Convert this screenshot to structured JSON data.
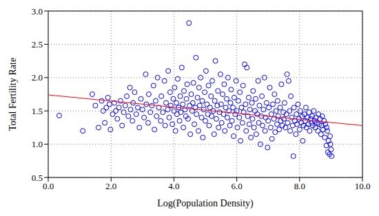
{
  "chart_data": {
    "type": "scatter",
    "x_label": "Log(Population Density)",
    "y_label": "Total Fertility Rate",
    "xlim": [
      0,
      10
    ],
    "xticks": [
      {
        "value": 0,
        "label": "0.0"
      },
      {
        "value": 2,
        "label": "2.0"
      },
      {
        "value": 4,
        "label": "4.0"
      },
      {
        "value": 6,
        "label": "6.0"
      },
      {
        "value": 8,
        "label": "8.0"
      },
      {
        "value": 10,
        "label": "10.0"
      }
    ],
    "ylim": [
      0.5,
      3
    ],
    "yticks": [
      0.5,
      {
        "value": 1,
        "label": "1.0"
      },
      1.5,
      {
        "value": 2,
        "label": "2.0"
      },
      2.5,
      {
        "value": 3,
        "label": "3.0"
      }
    ],
    "grid": true,
    "series": [
      {
        "type": "scatter",
        "color": "#0000ff",
        "marker": "circle",
        "x": [
          0.35,
          1.1,
          1.4,
          1.5,
          1.6,
          1.7,
          1.75,
          1.8,
          1.85,
          1.9,
          1.95,
          1.98,
          2.05,
          2.1,
          2.15,
          2.2,
          2.25,
          2.3,
          2.35,
          2.4,
          2.45,
          2.5,
          2.55,
          2.6,
          2.62,
          2.68,
          2.7,
          2.75,
          2.8,
          2.85,
          2.9,
          2.95,
          3.0,
          3.05,
          3.1,
          3.12,
          3.18,
          3.2,
          3.25,
          3.3,
          3.35,
          3.38,
          3.42,
          3.45,
          3.48,
          3.52,
          3.58,
          3.6,
          3.65,
          3.7,
          3.72,
          3.75,
          3.8,
          3.82,
          3.85,
          3.88,
          3.9,
          3.95,
          3.98,
          4.0,
          4.02,
          4.05,
          4.08,
          4.1,
          4.12,
          4.15,
          4.18,
          4.2,
          4.22,
          4.25,
          4.28,
          4.3,
          4.32,
          4.35,
          4.38,
          4.4,
          4.42,
          4.45,
          4.48,
          4.5,
          4.52,
          4.55,
          4.58,
          4.6,
          4.62,
          4.65,
          4.68,
          4.7,
          4.72,
          4.75,
          4.78,
          4.8,
          4.82,
          4.85,
          4.88,
          4.9,
          4.92,
          4.95,
          4.98,
          5.0,
          5.02,
          5.05,
          5.08,
          5.1,
          5.12,
          5.15,
          5.18,
          5.2,
          5.22,
          5.25,
          5.28,
          5.3,
          5.32,
          5.35,
          5.38,
          5.4,
          5.42,
          5.45,
          5.48,
          5.5,
          5.52,
          5.55,
          5.58,
          5.6,
          5.62,
          5.65,
          5.68,
          5.7,
          5.72,
          5.75,
          5.78,
          5.8,
          5.82,
          5.85,
          5.88,
          5.9,
          5.92,
          5.95,
          5.98,
          6.0,
          6.02,
          6.05,
          6.08,
          6.1,
          6.12,
          6.15,
          6.18,
          6.2,
          6.22,
          6.25,
          6.28,
          6.3,
          6.32,
          6.35,
          6.38,
          6.4,
          6.42,
          6.45,
          6.48,
          6.5,
          6.52,
          6.55,
          6.58,
          6.6,
          6.62,
          6.65,
          6.68,
          6.7,
          6.72,
          6.75,
          6.78,
          6.8,
          6.82,
          6.85,
          6.88,
          6.9,
          6.92,
          6.95,
          6.98,
          7.0,
          7.02,
          7.05,
          7.08,
          7.1,
          7.12,
          7.15,
          7.18,
          7.2,
          7.22,
          7.25,
          7.28,
          7.3,
          7.32,
          7.35,
          7.38,
          7.4,
          7.42,
          7.45,
          7.48,
          7.5,
          7.52,
          7.55,
          7.58,
          7.6,
          7.62,
          7.65,
          7.68,
          7.7,
          7.72,
          7.75,
          7.78,
          7.8,
          7.82,
          7.85,
          7.88,
          7.9,
          7.92,
          7.95,
          7.98,
          8.0,
          8.02,
          8.05,
          8.08,
          8.1,
          8.12,
          8.15,
          8.18,
          8.2,
          8.22,
          8.25,
          8.28,
          8.3,
          8.32,
          8.35,
          8.38,
          8.4,
          8.42,
          8.45,
          8.48,
          8.5,
          8.52,
          8.55,
          8.58,
          8.6,
          8.62,
          8.65,
          8.68,
          8.7,
          8.72,
          8.75,
          8.78,
          8.8,
          8.82,
          8.85,
          8.88,
          8.9,
          8.92,
          8.95,
          8.97,
          9.0,
          9.02,
          8.86,
          8.98
        ],
        "values": [
          1.43,
          1.2,
          1.75,
          1.58,
          1.25,
          1.65,
          1.5,
          1.32,
          1.55,
          1.7,
          1.6,
          1.22,
          1.45,
          1.62,
          1.5,
          1.38,
          1.55,
          1.65,
          1.28,
          1.48,
          1.58,
          1.72,
          1.42,
          1.85,
          1.52,
          1.35,
          1.62,
          1.78,
          1.45,
          1.55,
          1.25,
          1.68,
          1.52,
          1.4,
          2.05,
          1.6,
          1.32,
          1.75,
          1.48,
          1.58,
          1.88,
          1.22,
          1.65,
          1.42,
          2.0,
          1.55,
          1.35,
          1.72,
          1.48,
          1.95,
          1.28,
          1.62,
          1.52,
          2.1,
          1.4,
          1.78,
          1.58,
          1.3,
          1.68,
          1.5,
          1.85,
          1.2,
          1.62,
          1.45,
          1.98,
          1.55,
          1.35,
          1.72,
          1.48,
          2.15,
          1.6,
          1.25,
          1.8,
          1.52,
          1.42,
          1.68,
          1.9,
          1.38,
          2.82,
          1.58,
          1.15,
          1.75,
          1.5,
          1.62,
          1.92,
          1.3,
          1.55,
          2.3,
          1.45,
          1.7,
          1.2,
          1.85,
          1.58,
          2.0,
          1.4,
          1.65,
          1.1,
          1.52,
          1.78,
          1.35,
          2.1,
          1.6,
          1.45,
          1.88,
          1.28,
          1.55,
          1.72,
          1.42,
          1.95,
          1.5,
          1.15,
          1.65,
          2.25,
          1.38,
          1.58,
          1.8,
          1.25,
          1.48,
          2.05,
          1.6,
          1.32,
          1.75,
          1.45,
          1.9,
          1.2,
          1.55,
          1.68,
          1.4,
          2.0,
          1.5,
          1.28,
          1.62,
          1.82,
          1.35,
          1.55,
          1.12,
          1.7,
          1.45,
          1.95,
          1.5,
          1.25,
          1.65,
          1.4,
          1.78,
          1.05,
          1.55,
          1.32,
          1.88,
          1.48,
          2.2,
          1.6,
          1.2,
          2.15,
          1.42,
          1.7,
          1.3,
          1.52,
          1.1,
          1.62,
          1.38,
          1.8,
          1.25,
          1.5,
          1.68,
          1.15,
          1.45,
          1.95,
          1.32,
          1.58,
          1.0,
          1.42,
          1.72,
          1.28,
          1.52,
          2.0,
          1.2,
          1.4,
          1.62,
          0.95,
          1.35,
          1.55,
          1.85,
          1.25,
          1.45,
          1.08,
          1.6,
          1.38,
          1.75,
          1.18,
          1.5,
          1.3,
          1.65,
          1.42,
          1.22,
          1.55,
          1.35,
          1.9,
          1.28,
          1.48,
          1.38,
          1.62,
          1.25,
          1.45,
          2.05,
          1.32,
          1.95,
          1.5,
          1.2,
          1.72,
          1.4,
          1.28,
          0.82,
          1.55,
          1.35,
          1.15,
          1.45,
          1.3,
          1.6,
          1.38,
          1.22,
          1.5,
          1.32,
          1.42,
          1.05,
          1.28,
          1.45,
          1.35,
          1.55,
          1.25,
          1.4,
          1.3,
          1.48,
          1.2,
          1.38,
          1.32,
          1.42,
          1.28,
          1.5,
          1.35,
          1.25,
          1.4,
          1.32,
          1.2,
          1.45,
          1.3,
          1.38,
          1.15,
          1.28,
          1.42,
          1.22,
          1.35,
          1.1,
          1.3,
          0.98,
          1.2,
          0.88,
          1.05,
          0.85,
          1.12,
          0.92,
          0.82,
          1.25,
          1.0
        ]
      },
      {
        "type": "line",
        "color": "#ff0000",
        "line_style": "solid",
        "x": [
          0,
          10
        ],
        "values": [
          1.74,
          1.28
        ]
      }
    ]
  }
}
